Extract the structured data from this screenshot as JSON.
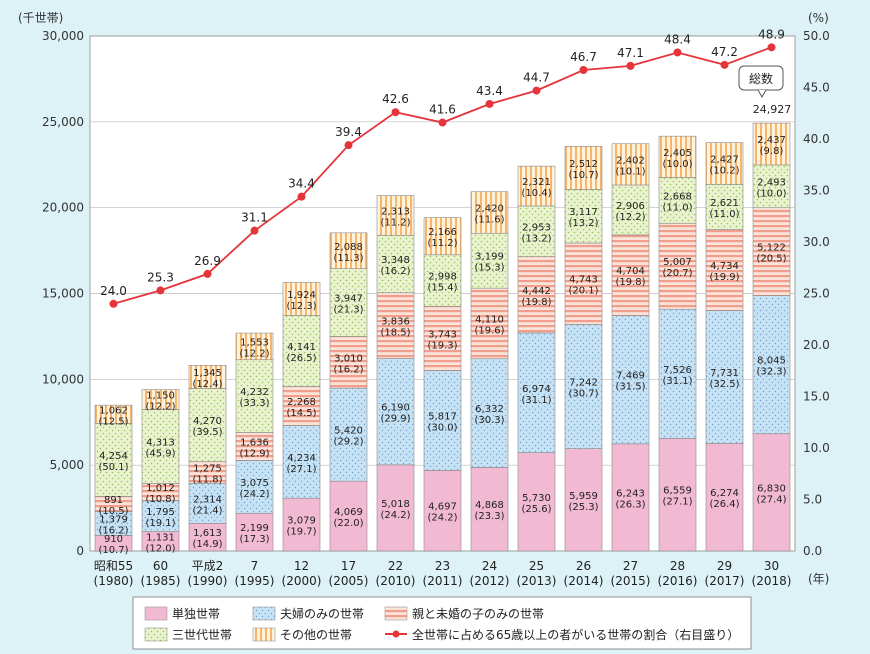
{
  "chart_data": {
    "type": "bar",
    "subtype": "stacked-bar-with-line",
    "left_axis_unit": "(千世帯)",
    "right_axis_unit": "(%)",
    "x_unit": "(年)",
    "ylim_left": [
      0,
      30000
    ],
    "ylim_right": [
      0,
      50
    ],
    "left_ticks": [
      "0",
      "5,000",
      "10,000",
      "15,000",
      "20,000",
      "25,000",
      "30,000"
    ],
    "right_ticks": [
      "0.0",
      "5.0",
      "10.0",
      "15.0",
      "20.0",
      "25.0",
      "30.0",
      "35.0",
      "40.0",
      "45.0",
      "50.0"
    ],
    "categories": [
      {
        "era": "昭和55",
        "year": "(1980)"
      },
      {
        "era": "60",
        "year": "(1985)"
      },
      {
        "era": "平成2",
        "year": "(1990)"
      },
      {
        "era": "7",
        "year": "(1995)"
      },
      {
        "era": "12",
        "year": "(2000)"
      },
      {
        "era": "17",
        "year": "(2005)"
      },
      {
        "era": "22",
        "year": "(2010)"
      },
      {
        "era": "23",
        "year": "(2011)"
      },
      {
        "era": "24",
        "year": "(2012)"
      },
      {
        "era": "25",
        "year": "(2013)"
      },
      {
        "era": "26",
        "year": "(2014)"
      },
      {
        "era": "27",
        "year": "(2015)"
      },
      {
        "era": "28",
        "year": "(2016)"
      },
      {
        "era": "29",
        "year": "(2017)"
      },
      {
        "era": "30",
        "year": "(2018)"
      }
    ],
    "series": [
      {
        "key": "single",
        "name": "単独世帯",
        "color": "#f2b9d3",
        "values": [
          910,
          1131,
          1613,
          2199,
          3079,
          4069,
          5018,
          4697,
          4868,
          5730,
          5959,
          6243,
          6559,
          6274,
          6830
        ],
        "labels": [
          "910",
          "1,131",
          "1,613",
          "2,199",
          "3,079",
          "4,069",
          "5,018",
          "4,697",
          "4,868",
          "5,730",
          "5,959",
          "6,243",
          "6,559",
          "6,274",
          "6,830"
        ],
        "pcts": [
          "(10.7)",
          "(12.0)",
          "(14.9)",
          "(17.3)",
          "(19.7)",
          "(22.0)",
          "(24.2)",
          "(24.2)",
          "(23.3)",
          "(25.6)",
          "(25.3)",
          "(26.3)",
          "(27.1)",
          "(26.4)",
          "(27.4)"
        ]
      },
      {
        "key": "couple",
        "name": "夫婦のみの世帯",
        "color": "#c7e2f4",
        "values": [
          1379,
          1795,
          2314,
          3075,
          4234,
          5420,
          6190,
          5817,
          6332,
          6974,
          7242,
          7469,
          7526,
          7731,
          8045
        ],
        "labels": [
          "1,379",
          "1,795",
          "2,314",
          "3,075",
          "4,234",
          "5,420",
          "6,190",
          "5,817",
          "6,332",
          "6,974",
          "7,242",
          "7,469",
          "7,526",
          "7,731",
          "8,045"
        ],
        "pcts": [
          "(16.2)",
          "(19.1)",
          "(21.4)",
          "(24.2)",
          "(27.1)",
          "(29.2)",
          "(29.9)",
          "(30.0)",
          "(30.3)",
          "(31.1)",
          "(30.7)",
          "(31.5)",
          "(31.1)",
          "(32.5)",
          "(32.3)"
        ]
      },
      {
        "key": "parent_child",
        "name": "親と未婚の子のみの世帯",
        "color": "#f8c4b4",
        "values": [
          891,
          1012,
          1275,
          1636,
          2268,
          3010,
          3836,
          3743,
          4110,
          4442,
          4743,
          4704,
          5007,
          4734,
          5122
        ],
        "labels": [
          "891",
          "1,012",
          "1,275",
          "1,636",
          "2,268",
          "3,010",
          "3,836",
          "3,743",
          "4,110",
          "4,442",
          "4,743",
          "4,704",
          "5,007",
          "4,734",
          "5,122"
        ],
        "pcts": [
          "(10.5)",
          "(10.8)",
          "(11.8)",
          "(12.9)",
          "(14.5)",
          "(16.2)",
          "(18.5)",
          "(19.3)",
          "(19.6)",
          "(19.8)",
          "(20.1)",
          "(19.8)",
          "(20.7)",
          "(19.9)",
          "(20.5)"
        ]
      },
      {
        "key": "three_gen",
        "name": "三世代世帯",
        "color": "#e4efc6",
        "values": [
          4254,
          4313,
          4270,
          4232,
          4141,
          3947,
          3348,
          2998,
          3199,
          2953,
          3117,
          2906,
          2668,
          2621,
          2493
        ],
        "labels": [
          "4,254",
          "4,313",
          "4,270",
          "4,232",
          "4,141",
          "3,947",
          "3,348",
          "2,998",
          "3,199",
          "2,953",
          "3,117",
          "2,906",
          "2,668",
          "2,621",
          "2,493"
        ],
        "pcts": [
          "(50.1)",
          "(45.9)",
          "(39.5)",
          "(33.3)",
          "(26.5)",
          "(21.3)",
          "(16.2)",
          "(15.4)",
          "(15.3)",
          "(13.2)",
          "(13.2)",
          "(12.2)",
          "(11.0)",
          "(11.0)",
          "(10.0)"
        ]
      },
      {
        "key": "other",
        "name": "その他の世帯",
        "color": "#fde3b8",
        "values": [
          1062,
          1150,
          1345,
          1553,
          1924,
          2088,
          2313,
          2166,
          2420,
          2321,
          2512,
          2402,
          2405,
          2427,
          2437
        ],
        "labels": [
          "1,062",
          "1,150",
          "1,345",
          "1,553",
          "1,924",
          "2,088",
          "2,313",
          "2,166",
          "2,420",
          "2,321",
          "2,512",
          "2,402",
          "2,405",
          "2,427",
          "2,437"
        ],
        "pcts": [
          "(12.5)",
          "(12.2)",
          "(12.4)",
          "(12.2)",
          "(12.3)",
          "(11.3)",
          "(11.2)",
          "(11.2)",
          "(11.6)",
          "(10.4)",
          "(10.7)",
          "(10.1)",
          "(10.0)",
          "(10.2)",
          "(9.8)"
        ]
      }
    ],
    "line": {
      "name": "全世帯に占める65歳以上の者がいる世帯の割合（右目盛り）",
      "color": "#e5343a",
      "values": [
        24.0,
        25.3,
        26.9,
        31.1,
        34.4,
        39.4,
        42.6,
        41.6,
        43.4,
        44.7,
        46.7,
        47.1,
        48.4,
        47.2,
        48.9
      ],
      "labels": [
        "24.0",
        "25.3",
        "26.9",
        "31.1",
        "34.4",
        "39.4",
        "42.6",
        "41.6",
        "43.4",
        "44.7",
        "46.7",
        "47.1",
        "48.4",
        "47.2",
        "48.9"
      ]
    },
    "total_callout": {
      "label": "総数",
      "value": "24,927"
    }
  }
}
